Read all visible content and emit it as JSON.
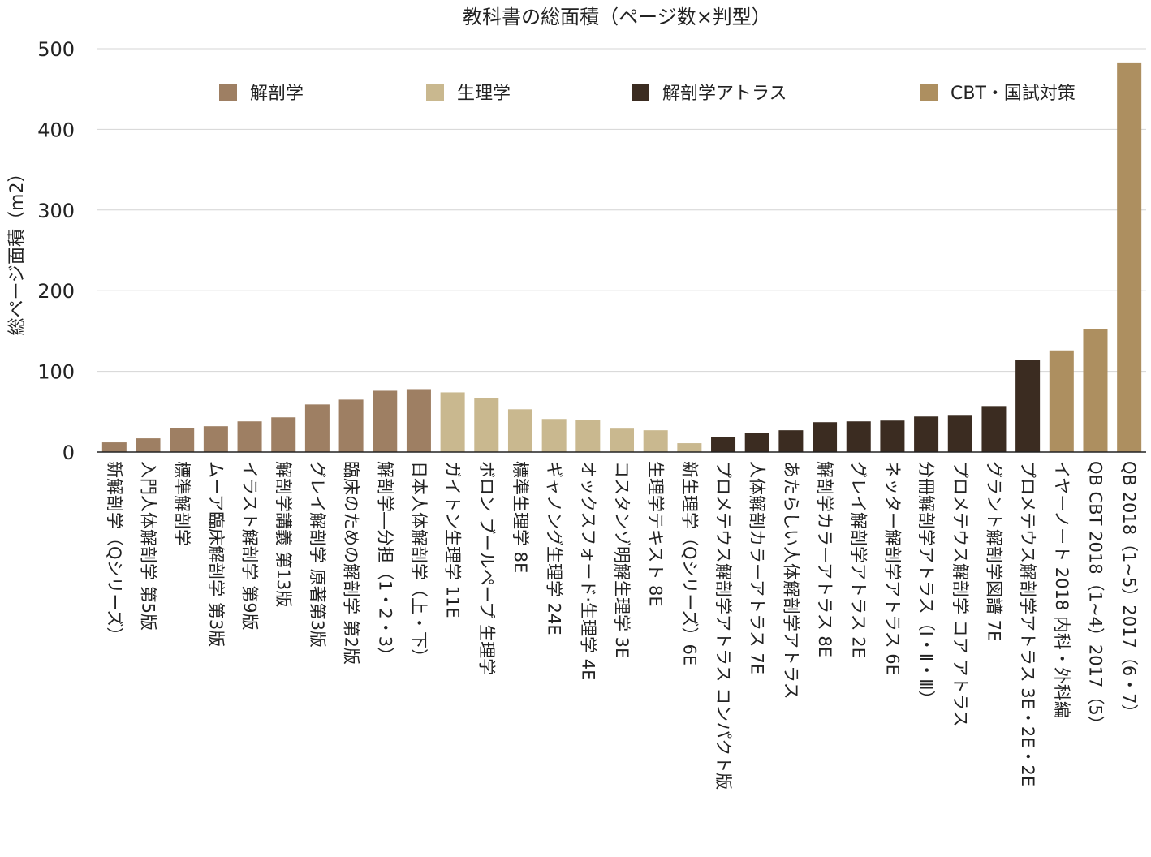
{
  "chart_data": {
    "type": "bar",
    "title": "教科書の総面積（ページ数×判型）",
    "xlabel": "",
    "ylabel": "総ページ面積（m2）",
    "ylim": [
      0,
      500
    ],
    "yticks": [
      0,
      100,
      200,
      300,
      400,
      500
    ],
    "grid": true,
    "legend_position": "top",
    "series": [
      {
        "name": "解剖学",
        "color": "#9e7f63"
      },
      {
        "name": "生理学",
        "color": "#c9b88f"
      },
      {
        "name": "解剖学アトラス",
        "color": "#3b2c21"
      },
      {
        "name": "CBT・国試対策",
        "color": "#ad8f60"
      }
    ],
    "categories": [
      "新解剖学（Qシリーズ）",
      "入門人体解剖学 第5版",
      "標準解剖学",
      "ムーア臨床解剖学 第3版",
      "イラスト解剖学 第9版",
      "解剖学講義 第13版",
      "グレイ解剖学 原著第3版",
      "臨床のための解剖学 第2版",
      "解剖学―分担（1・2・3）",
      "日本人体解剖学（上・下）",
      "ガイトン生理学 11E",
      "ボロン ブールペープ 生理学",
      "標準生理学 8E",
      "ギャノング生理学 24E",
      "オックスフォード·生理学 4E",
      "コスタンゾ明解生理学 3E",
      "生理学テキスト 8E",
      "新生理学（Qシリーズ）6E",
      "プロメテウス解剖学アトラス コンパクト版",
      "人体解剖カラーアトラス 7E",
      "あたらしい人体解剖学アトラス",
      "解剖学カラーアトラス 8E",
      "グレイ解剖学アトラス 2E",
      "ネッター解剖学アトラス 6E",
      "分冊解剖学アトラス（Ⅰ・Ⅱ・Ⅲ）",
      "プロメテウス解剖学 コア アトラス",
      "グラント解剖学図譜 7E",
      "プロメテウス解剖学アトラス 3E・2E・2E",
      "イヤーノート 2018 内科・外科編",
      "QB CBT 2018（1~4）2017（5）",
      "QB 2018（1~5）2017（6・7）"
    ],
    "values": [
      12,
      17,
      30,
      32,
      38,
      43,
      59,
      65,
      76,
      78,
      74,
      67,
      53,
      41,
      40,
      29,
      27,
      11,
      19,
      24,
      27,
      37,
      38,
      39,
      44,
      46,
      57,
      114,
      126,
      152,
      482
    ],
    "series_index": [
      0,
      0,
      0,
      0,
      0,
      0,
      0,
      0,
      0,
      0,
      1,
      1,
      1,
      1,
      1,
      1,
      1,
      1,
      2,
      2,
      2,
      2,
      2,
      2,
      2,
      2,
      2,
      2,
      3,
      3,
      3
    ]
  }
}
